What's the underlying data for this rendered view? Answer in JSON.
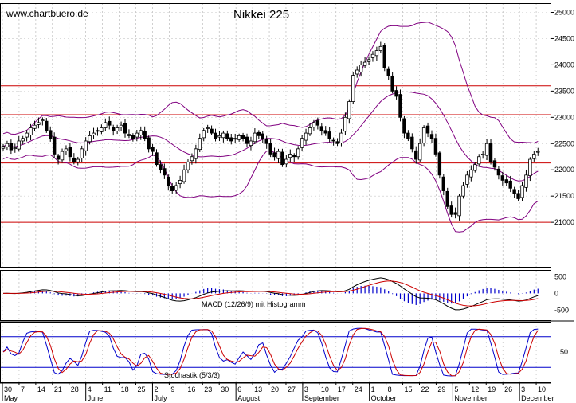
{
  "header": {
    "site": "www.chartbuero.de",
    "title": "Nikkei 225"
  },
  "chart_data": {
    "type": "candlestick",
    "title": "Nikkei 225",
    "price_axis": {
      "ticks": [
        21000,
        21500,
        22000,
        22500,
        23000,
        23500,
        24000,
        24500,
        25000
      ],
      "labels": [
        "21000",
        "21500",
        "22000",
        "22500",
        "23000",
        "23500",
        "24000",
        "24500",
        "25000"
      ],
      "range": [
        20600,
        25100
      ]
    },
    "horizontal_lines": [
      21000,
      22130,
      23050,
      23600
    ],
    "line_color": "#cc0000",
    "close": [
      22450,
      22500,
      22380,
      22420,
      22550,
      22600,
      22700,
      22800,
      22850,
      22900,
      22950,
      22750,
      22600,
      22300,
      22200,
      22350,
      22400,
      22250,
      22150,
      22200,
      22400,
      22550,
      22650,
      22700,
      22750,
      22800,
      22900,
      22850,
      22750,
      22800,
      22850,
      22700,
      22650,
      22600,
      22700,
      22750,
      22600,
      22400,
      22350,
      22100,
      22000,
      21900,
      21700,
      21600,
      21700,
      21800,
      22000,
      22150,
      22250,
      22400,
      22600,
      22750,
      22800,
      22700,
      22600,
      22650,
      22700,
      22600,
      22550,
      22600,
      22650,
      22600,
      22500,
      22550,
      22700,
      22650,
      22600,
      22500,
      22300,
      22250,
      22350,
      22100,
      22200,
      22300,
      22250,
      22400,
      22600,
      22700,
      22800,
      22900,
      22850,
      22750,
      22700,
      22600,
      22550,
      22500,
      22700,
      23000,
      23300,
      23800,
      23900,
      24000,
      24050,
      24100,
      24200,
      24270,
      24350,
      23950,
      23800,
      23500,
      23400,
      23000,
      22700,
      22600,
      22400,
      22200,
      22500,
      22800,
      22700,
      22600,
      22300,
      21900,
      21600,
      21300,
      21150,
      21150,
      21500,
      21700,
      21900,
      22000,
      22100,
      22250,
      22300,
      22500,
      22150,
      22050,
      21900,
      21800,
      21750,
      21650,
      21550,
      21450,
      21700,
      21900,
      22200,
      22300,
      22350
    ],
    "macd": {
      "label": "MACD (12/26/9) mit Histogramm",
      "ticks": [
        -500,
        0,
        500
      ],
      "tick_labels": [
        "-500",
        "0",
        "500"
      ],
      "range": [
        -800,
        700
      ]
    },
    "stochastic": {
      "label": "Stochastik (5/3/3)",
      "ticks": [
        50
      ],
      "tick_labels": [
        "50"
      ],
      "bands": [
        20,
        80
      ],
      "range": [
        0,
        100
      ]
    },
    "x_axis": {
      "days": [
        "30",
        "7",
        "14",
        "21",
        "28",
        "4",
        "11",
        "18",
        "25",
        "2",
        "9",
        "16",
        "23",
        "30",
        "6",
        "13",
        "20",
        "27",
        "3",
        "10",
        "17",
        "24",
        "1",
        "8",
        "15",
        "22",
        "29",
        "5",
        "12",
        "19",
        "26",
        "3",
        "10"
      ],
      "months": [
        "May",
        "June",
        "July",
        "August",
        "September",
        "October",
        "November",
        "December"
      ]
    }
  }
}
